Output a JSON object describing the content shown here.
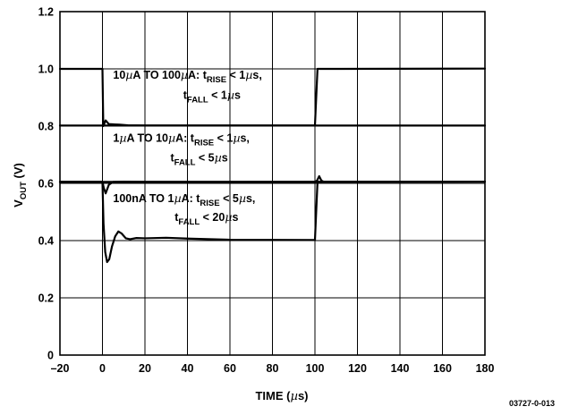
{
  "chart_data": {
    "type": "line",
    "xlabel": {
      "prefix": "TIME (",
      "mu": "µ",
      "suffix": "s)"
    },
    "ylabel": {
      "main": "V",
      "sub": "OUT",
      "suffix": " (V)"
    },
    "xlim": [
      -20,
      180
    ],
    "ylim": [
      0,
      1.2
    ],
    "xticks": [
      -20,
      0,
      20,
      40,
      60,
      80,
      100,
      120,
      140,
      160,
      180
    ],
    "yticks": [
      0,
      0.2,
      0.4,
      0.6,
      0.8,
      1.0,
      1.2
    ],
    "xtick_labels": [
      "–20",
      "0",
      "20",
      "40",
      "60",
      "80",
      "100",
      "120",
      "140",
      "160",
      "180"
    ],
    "ytick_labels": [
      "0",
      "0.2",
      "0.4",
      "0.6",
      "0.8",
      "1.0",
      "1.2"
    ],
    "grid": true,
    "figure_id": "03727-0-013",
    "series": [
      {
        "values": [
          [
            -20,
            1.0
          ],
          [
            0,
            1.0
          ],
          [
            0.4,
            0.8
          ],
          [
            1.5,
            0.82
          ],
          [
            3,
            0.807
          ],
          [
            8,
            0.805
          ],
          [
            12,
            0.803
          ],
          [
            20,
            0.802
          ],
          [
            180,
            0.802
          ]
        ]
      },
      {
        "values": [
          [
            -20,
            0.802
          ],
          [
            100,
            0.802
          ],
          [
            101.2,
            1.0
          ],
          [
            104,
            1.0
          ],
          [
            180,
            1.001
          ]
        ]
      },
      {
        "values": [
          [
            -20,
            0.605
          ],
          [
            0,
            0.605
          ],
          [
            0.6,
            0.585
          ],
          [
            1.5,
            0.565
          ],
          [
            3,
            0.595
          ],
          [
            5,
            0.605
          ],
          [
            10,
            0.606
          ],
          [
            20,
            0.605
          ],
          [
            180,
            0.606
          ]
        ]
      },
      {
        "values": [
          [
            -20,
            0.605
          ],
          [
            100,
            0.605
          ],
          [
            101,
            0.61
          ],
          [
            102,
            0.625
          ],
          [
            103,
            0.61
          ],
          [
            104,
            0.606
          ],
          [
            180,
            0.606
          ]
        ]
      },
      {
        "values": [
          [
            -20,
            0.605
          ],
          [
            0,
            0.605
          ],
          [
            0.5,
            0.46
          ],
          [
            1.3,
            0.36
          ],
          [
            2.2,
            0.325
          ],
          [
            3.2,
            0.335
          ],
          [
            4.5,
            0.38
          ],
          [
            6,
            0.415
          ],
          [
            7.5,
            0.432
          ],
          [
            9,
            0.425
          ],
          [
            11,
            0.408
          ],
          [
            13,
            0.405
          ],
          [
            16,
            0.409
          ],
          [
            20,
            0.408
          ],
          [
            30,
            0.41
          ],
          [
            40,
            0.407
          ],
          [
            60,
            0.403
          ],
          [
            100,
            0.402
          ],
          [
            101.2,
            0.605
          ],
          [
            104,
            0.606
          ],
          [
            180,
            0.606
          ]
        ]
      }
    ],
    "annotations": [
      {
        "x": 5,
        "y": 0.965,
        "parts": [
          {
            "t": "10",
            "s": "n"
          },
          {
            "t": "µ",
            "s": "n"
          },
          {
            "t": "A TO 100",
            "s": "n"
          },
          {
            "t": "µ",
            "s": "n"
          },
          {
            "t": "A: t",
            "s": "n"
          },
          {
            "t": "RISE",
            "s": "sub"
          },
          {
            "t": " < 1",
            "s": "n"
          },
          {
            "t": "µ",
            "s": "n"
          },
          {
            "t": "s,",
            "s": "n"
          }
        ]
      },
      {
        "x": 38,
        "y": 0.895,
        "parts": [
          {
            "t": "t",
            "s": "n"
          },
          {
            "t": "FALL",
            "s": "sub"
          },
          {
            "t": " < 1",
            "s": "n"
          },
          {
            "t": "µ",
            "s": "n"
          },
          {
            "t": "s",
            "s": "n"
          }
        ]
      },
      {
        "x": 5,
        "y": 0.745,
        "parts": [
          {
            "t": "1",
            "s": "n"
          },
          {
            "t": "µ",
            "s": "n"
          },
          {
            "t": "A TO 10",
            "s": "n"
          },
          {
            "t": "µ",
            "s": "n"
          },
          {
            "t": "A: t",
            "s": "n"
          },
          {
            "t": "RISE",
            "s": "sub"
          },
          {
            "t": " < 1",
            "s": "n"
          },
          {
            "t": "µ",
            "s": "n"
          },
          {
            "t": "s,",
            "s": "n"
          }
        ]
      },
      {
        "x": 32,
        "y": 0.676,
        "parts": [
          {
            "t": "t",
            "s": "n"
          },
          {
            "t": "FALL",
            "s": "sub"
          },
          {
            "t": " < 5",
            "s": "n"
          },
          {
            "t": "µ",
            "s": "n"
          },
          {
            "t": "s",
            "s": "n"
          }
        ]
      },
      {
        "x": 5,
        "y": 0.535,
        "parts": [
          {
            "t": "100nA TO 1",
            "s": "n"
          },
          {
            "t": "µ",
            "s": "n"
          },
          {
            "t": "A: t",
            "s": "n"
          },
          {
            "t": "RISE",
            "s": "sub"
          },
          {
            "t": " < 5",
            "s": "n"
          },
          {
            "t": "µ",
            "s": "n"
          },
          {
            "t": "s,",
            "s": "n"
          }
        ]
      },
      {
        "x": 34,
        "y": 0.468,
        "parts": [
          {
            "t": "t",
            "s": "n"
          },
          {
            "t": "FALL",
            "s": "sub"
          },
          {
            "t": " < 20",
            "s": "n"
          },
          {
            "t": "µ",
            "s": "n"
          },
          {
            "t": "s",
            "s": "n"
          }
        ]
      }
    ]
  }
}
